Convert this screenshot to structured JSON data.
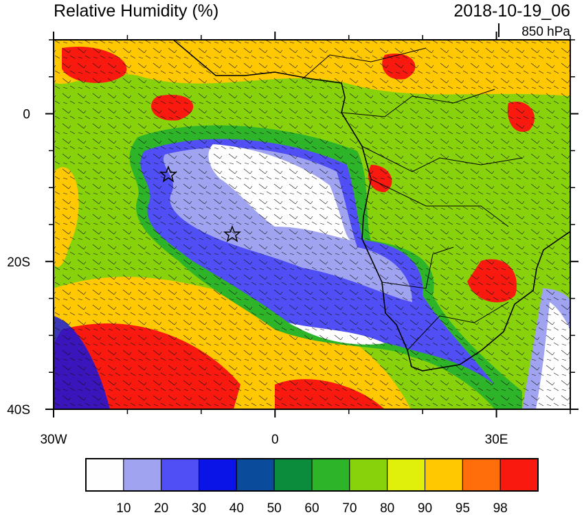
{
  "title": "Relative Humidity (%)",
  "date": "2018-10-19_06",
  "level": "850 hPa",
  "map": {
    "xlim": [
      -30,
      40
    ],
    "ylim": [
      -40,
      10
    ],
    "xticks": [
      {
        "value": -30,
        "label": "30W"
      },
      {
        "value": 0,
        "label": "0"
      },
      {
        "value": 30,
        "label": "30E"
      }
    ],
    "yticks": [
      {
        "value": 0,
        "label": "0"
      },
      {
        "value": -20,
        "label": "20S"
      },
      {
        "value": -40,
        "label": "40S"
      }
    ],
    "minor_xticks": [
      -20,
      -10,
      10,
      20,
      40
    ],
    "minor_yticks": [
      10,
      5,
      -5,
      -10,
      -15,
      -25,
      -30,
      -35
    ]
  },
  "colorbar": {
    "levels": [
      10,
      20,
      30,
      40,
      50,
      60,
      70,
      80,
      90,
      95,
      98
    ],
    "colors": [
      "#fefefe",
      "#a0a4f0",
      "#4f4ff5",
      "#0a14e6",
      "#0a4b9b",
      "#0a8c3c",
      "#2db428",
      "#87d20a",
      "#e1f00a",
      "#ffc800",
      "#ff6e0a",
      "#fa190f"
    ]
  }
}
